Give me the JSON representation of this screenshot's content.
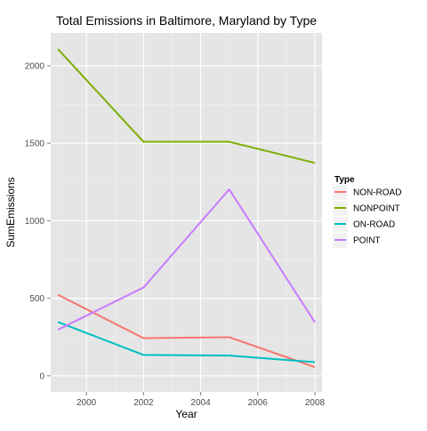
{
  "chart_data": {
    "type": "line",
    "title": "Total Emissions in Baltimore, Maryland by Type",
    "xlabel": "Year",
    "ylabel": "SumEmissions",
    "x": [
      1999,
      2002,
      2005,
      2008
    ],
    "xlim": [
      1998.75,
      2008.25
    ],
    "ylim": [
      -104,
      2212
    ],
    "xticks": [
      2000,
      2002,
      2004,
      2006,
      2008
    ],
    "yticks": [
      0,
      500,
      1000,
      1500,
      2000
    ],
    "grid": true,
    "legend": {
      "title": "Type",
      "placement": "right"
    },
    "series": [
      {
        "name": "NON-ROAD",
        "color": "#F8766D",
        "values": [
          522.94,
          242.85,
          248.93,
          55.82
        ]
      },
      {
        "name": "NONPOINT",
        "color": "#7CAE00",
        "values": [
          2107.63,
          1509.5,
          1509.5,
          1373.21
        ]
      },
      {
        "name": "ON-ROAD",
        "color": "#00BFC4",
        "values": [
          346.82,
          134.31,
          130.43,
          88.28
        ]
      },
      {
        "name": "POINT",
        "color": "#C77CFF",
        "values": [
          296.8,
          569.26,
          1202.49,
          344.98
        ]
      }
    ]
  }
}
